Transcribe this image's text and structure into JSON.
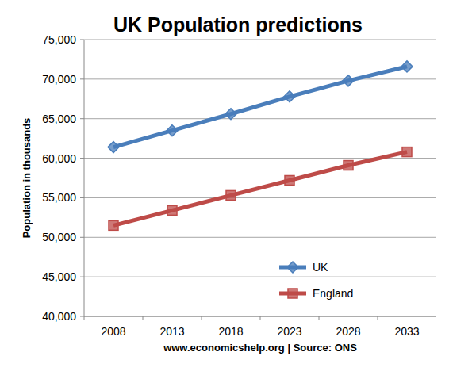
{
  "chart_data": {
    "type": "line",
    "title": "UK Population predictions",
    "x_label": "www.economicshelp.org | Source: ONS",
    "y_label": "Population in thousands",
    "categories": [
      "2008",
      "2013",
      "2018",
      "2023",
      "2028",
      "2033"
    ],
    "series": [
      {
        "name": "UK",
        "color": "#4a7ebb",
        "marker": "diamond",
        "values": [
          61400,
          63500,
          65600,
          67800,
          69800,
          71600
        ]
      },
      {
        "name": "England",
        "color": "#be4b48",
        "marker": "square",
        "values": [
          51500,
          53400,
          55300,
          57200,
          59100,
          60800
        ]
      }
    ],
    "ylim": [
      40000,
      75000
    ],
    "yticks": [
      {
        "value": 40000,
        "label": "40,000"
      },
      {
        "value": 45000,
        "label": "45,000"
      },
      {
        "value": 50000,
        "label": "50,000"
      },
      {
        "value": 55000,
        "label": "55,000"
      },
      {
        "value": 60000,
        "label": "60,000"
      },
      {
        "value": 65000,
        "label": "65,000"
      },
      {
        "value": 70000,
        "label": "70,000"
      },
      {
        "value": 75000,
        "label": "75,000"
      }
    ],
    "grid": true,
    "legend": "bottom"
  }
}
